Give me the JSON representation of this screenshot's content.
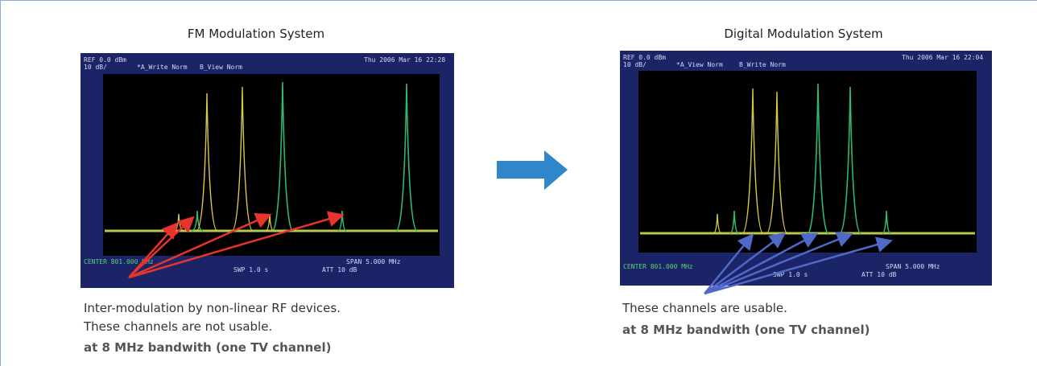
{
  "left_panel": {
    "title": "FM Modulation System",
    "screen": {
      "ref": "REF 0.0 dBm",
      "scale": "10 dB/",
      "trace_a": "*A_Write Norm",
      "trace_b": "B_View Norm",
      "date": "Thu 2006 Mar 16 22:28",
      "center": "CENTER 801.000 MHz",
      "span": "SPAN 5.000 MHz",
      "sweep": "SWP 1.0 s",
      "att": "ATT 10 dB"
    },
    "captions": [
      "Inter-modulation by non-linear RF devices.",
      "These channels are not usable."
    ],
    "note": "at 8 MHz bandwith (one TV channel)"
  },
  "right_panel": {
    "title": "Digital Modulation System",
    "screen": {
      "ref": "REF 0.0 dBm",
      "scale": "10 dB/",
      "trace_a": "*A_View Norm",
      "trace_b": "B_Write Norm",
      "date": "Thu 2006 Mar 16 22:04",
      "center": "CENTER 801.000 MHz",
      "span": "SPAN 5.000 MHz",
      "sweep": "SWP 1.0 s",
      "att": "ATT 10 dB"
    },
    "captions": [
      "These channels are usable."
    ],
    "note": "at 8 MHz bandwith (one TV channel)"
  }
}
